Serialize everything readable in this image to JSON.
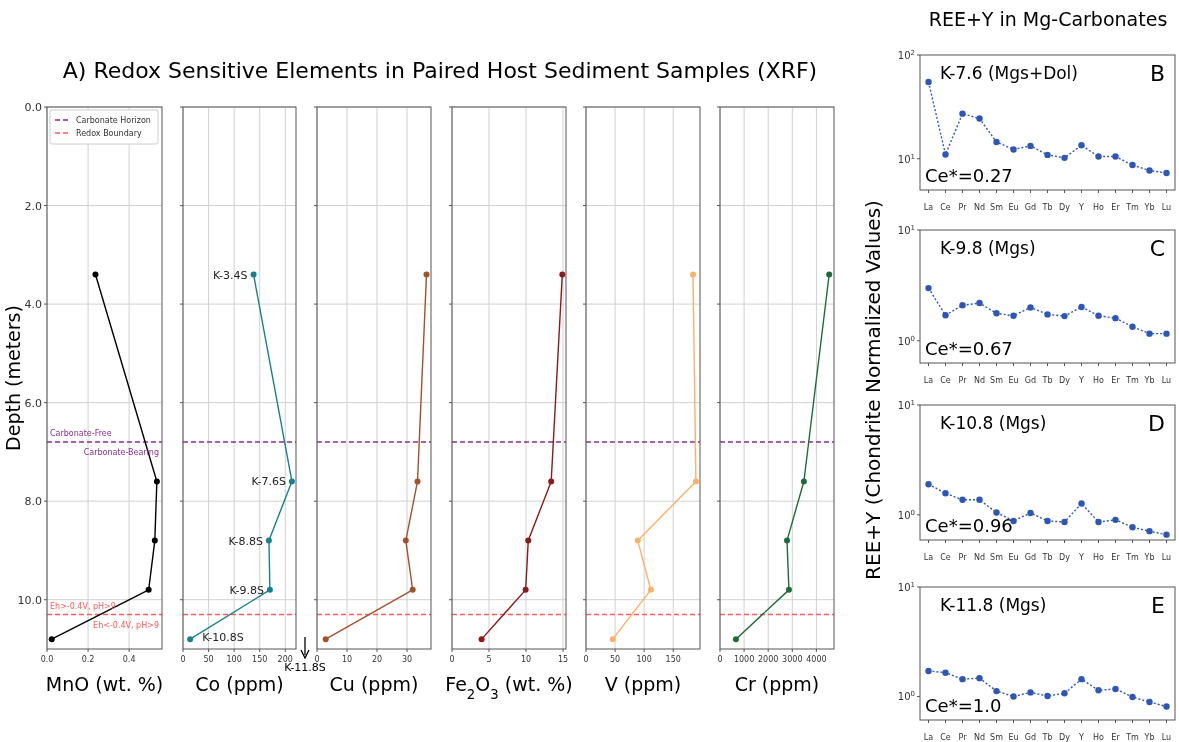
{
  "chart_data": [
    {
      "type": "line",
      "title": "A) Redox Sensitive Elements in Paired Host Sediment Samples (XRF)",
      "xlabel": "MnO (wt. %)",
      "ylabel": "Depth (meters)",
      "xlim": [
        0,
        0.56
      ],
      "xticks": [
        {
          "value": 0,
          "label": "0.0"
        },
        {
          "value": 0.2,
          "label": "0.2"
        },
        {
          "value": 0.4,
          "label": "0.4"
        }
      ],
      "ylim": [
        11,
        0
      ],
      "yticks": [
        {
          "value": 0,
          "label": "0.0"
        },
        {
          "value": 2,
          "label": "2.0"
        },
        {
          "value": 4,
          "label": "4.0"
        },
        {
          "value": 6,
          "label": "6.0"
        },
        {
          "value": 8,
          "label": "8.0"
        },
        {
          "value": 10,
          "label": "10.0"
        }
      ],
      "grid": true,
      "marker": "circle",
      "line_style": "solid",
      "legend": "top left",
      "series": [
        {
          "color": "#000000",
          "x": [
            0.236,
            0.535,
            0.525,
            0.495,
            0.023
          ],
          "values": [
            3.4,
            7.6,
            8.8,
            9.8,
            10.8
          ]
        }
      ],
      "ref_lines": [
        {
          "axis": "y",
          "value": 6.8,
          "label": "Carbonate Horizon",
          "color": "#8b2f8b",
          "line_style": "dashed"
        },
        {
          "axis": "y",
          "value": 10.3,
          "label": "Redox Boundary",
          "color": "#ff5a5a",
          "line_style": "dashed"
        }
      ],
      "annotations": [
        "Carbonate-Free",
        "Carbonate-Bearing",
        "Eh>-0.4V, pH>9",
        "Eh<-0.4V, pH>9"
      ]
    },
    {
      "type": "line",
      "xlabel": "Co (ppm)",
      "xlim": [
        0,
        221
      ],
      "xticks": [
        0,
        50,
        100,
        150,
        200
      ],
      "ylim": [
        11,
        0
      ],
      "yticks": [
        0,
        2,
        4,
        6,
        8,
        10
      ],
      "tick_labels": "x",
      "grid": true,
      "marker": "circle",
      "line_style": "solid",
      "series": [
        {
          "color": "#17808f",
          "x": [
            138,
            213,
            168,
            170,
            14
          ],
          "values": [
            3.4,
            7.6,
            8.8,
            9.8,
            10.8
          ]
        }
      ],
      "ref_lines": [
        {
          "axis": "y",
          "value": 6.8,
          "color": "#8b2f8b",
          "line_style": "dashed"
        },
        {
          "axis": "y",
          "value": 10.3,
          "color": "#ff5a5a",
          "line_style": "dashed"
        }
      ],
      "annotations": [
        {
          "text": "K-3.4S",
          "x": 138,
          "y": 3.4
        },
        {
          "text": "K-7.6S",
          "x": 213,
          "y": 7.6
        },
        {
          "text": "K-8.8S",
          "x": 168,
          "y": 8.8
        },
        {
          "text": "K-9.8S",
          "x": 170,
          "y": 9.8
        },
        {
          "text": "K-10.8S",
          "x": 14,
          "y": 10.8
        },
        "K-11.8S"
      ]
    },
    {
      "type": "line",
      "xlabel": "Cu (ppm)",
      "xlim": [
        0,
        38
      ],
      "xticks": [
        0,
        10,
        20,
        30
      ],
      "ylim": [
        11,
        0
      ],
      "yticks": [
        0,
        2,
        4,
        6,
        8,
        10
      ],
      "tick_labels": "x",
      "grid": true,
      "marker": "circle",
      "line_style": "solid",
      "series": [
        {
          "color": "#a0522d",
          "x": [
            36.5,
            33.5,
            29.6,
            31.9,
            2.9
          ],
          "values": [
            3.4,
            7.6,
            8.8,
            9.8,
            10.8
          ]
        }
      ],
      "ref_lines": [
        {
          "axis": "y",
          "value": 6.8,
          "color": "#8b2f8b",
          "line_style": "dashed"
        },
        {
          "axis": "y",
          "value": 10.3,
          "color": "#ff5a5a",
          "line_style": "dashed"
        }
      ]
    },
    {
      "type": "line",
      "xlabel": "Fe$_{2}$O$_{3}$ (wt. %)",
      "xlim": [
        0,
        15.4
      ],
      "xticks": [
        0,
        5,
        10,
        15
      ],
      "ylim": [
        11,
        0
      ],
      "yticks": [
        0,
        2,
        4,
        6,
        8,
        10
      ],
      "tick_labels": "x",
      "grid": true,
      "marker": "circle",
      "line_style": "solid",
      "series": [
        {
          "color": "#8b1a1a",
          "x": [
            14.9,
            13.4,
            10.3,
            9.95,
            4.0
          ],
          "values": [
            3.4,
            7.6,
            8.8,
            9.8,
            10.8
          ]
        }
      ],
      "ref_lines": [
        {
          "axis": "y",
          "value": 6.8,
          "color": "#8b2f8b",
          "line_style": "dashed"
        },
        {
          "axis": "y",
          "value": 10.3,
          "color": "#ff5a5a",
          "line_style": "dashed"
        }
      ]
    },
    {
      "type": "line",
      "xlabel": "V (ppm)",
      "xlim": [
        0,
        196
      ],
      "xticks": [
        0,
        50,
        100,
        150
      ],
      "ylim": [
        11,
        0
      ],
      "yticks": [
        0,
        2,
        4,
        6,
        8,
        10
      ],
      "tick_labels": "x",
      "grid": true,
      "marker": "circle",
      "line_style": "solid",
      "series": [
        {
          "color": "#ffb066",
          "x": [
            184,
            189,
            89,
            111.5,
            46
          ],
          "values": [
            3.4,
            7.6,
            8.8,
            9.8,
            10.8
          ]
        }
      ],
      "ref_lines": [
        {
          "axis": "y",
          "value": 6.8,
          "color": "#8b2f8b",
          "line_style": "dashed"
        },
        {
          "axis": "y",
          "value": 10.3,
          "color": "#ff5a5a",
          "line_style": "dashed"
        }
      ]
    },
    {
      "type": "line",
      "xlabel": "Cr (ppm)",
      "xlim": [
        0,
        4730
      ],
      "xticks": [
        0,
        1000,
        2000,
        3000,
        4000
      ],
      "ylim": [
        11,
        0
      ],
      "yticks": [
        0,
        2,
        4,
        6,
        8,
        10
      ],
      "tick_labels": "x",
      "grid": true,
      "marker": "circle",
      "line_style": "solid",
      "series": [
        {
          "color": "#1e6b3a",
          "x": [
            4530,
            3480,
            2780,
            2860,
            660
          ],
          "values": [
            3.4,
            7.6,
            8.8,
            9.8,
            10.8
          ]
        }
      ],
      "ref_lines": [
        {
          "axis": "y",
          "value": 6.8,
          "color": "#8b2f8b",
          "line_style": "dashed"
        },
        {
          "axis": "y",
          "value": 10.3,
          "color": "#ff5a5a",
          "line_style": "dashed"
        }
      ]
    },
    {
      "type": "line",
      "title": "REE+Y in Mg-Carbonates",
      "ylabel": "REE+Y (Chondrite Normalized Values)",
      "log": "y",
      "ylim": [
        5,
        100
      ],
      "yticks": [
        {
          "value": 10,
          "label": "10$^{1}$"
        },
        {
          "value": 100,
          "label": "10$^{2}$"
        }
      ],
      "marker": "circle",
      "line_style": "dotted",
      "categories": [
        "La",
        "Ce",
        "Pr",
        "Nd",
        "Sm",
        "Eu",
        "Gd",
        "Tb",
        "Dy",
        "Y",
        "Ho",
        "Er",
        "Tm",
        "Yb",
        "Lu"
      ],
      "series": [
        {
          "color": "#2e55b8",
          "values": [
            55,
            11.0,
            27.2,
            24.4,
            14.5,
            12.3,
            13.3,
            10.9,
            10.2,
            13.5,
            10.5,
            10.5,
            8.7,
            7.7,
            7.3
          ]
        }
      ],
      "annotations": [
        "K-7.6 (Mgs+Dol)",
        "B",
        "Ce*=0.27"
      ]
    },
    {
      "type": "line",
      "log": "y",
      "ylim": [
        0.63,
        10
      ],
      "yticks": [
        {
          "value": 1,
          "label": "10$^{0}$"
        },
        {
          "value": 10,
          "label": "10$^{1}$"
        }
      ],
      "marker": "circle",
      "line_style": "dotted",
      "categories": [
        "La",
        "Ce",
        "Pr",
        "Nd",
        "Sm",
        "Eu",
        "Gd",
        "Tb",
        "Dy",
        "Y",
        "Ho",
        "Er",
        "Tm",
        "Yb",
        "Lu"
      ],
      "series": [
        {
          "color": "#2e55b8",
          "values": [
            2.99,
            1.7,
            2.09,
            2.19,
            1.77,
            1.68,
            2.0,
            1.73,
            1.67,
            2.02,
            1.68,
            1.6,
            1.34,
            1.16,
            1.16
          ]
        }
      ],
      "annotations": [
        "K-9.8 (Mgs)",
        "C",
        "Ce*=0.67"
      ]
    },
    {
      "type": "line",
      "log": "y",
      "ylim": [
        0.59,
        10
      ],
      "yticks": [
        {
          "value": 1,
          "label": "10$^{0}$"
        },
        {
          "value": 10,
          "label": "10$^{1}$"
        }
      ],
      "marker": "circle",
      "line_style": "dotted",
      "categories": [
        "La",
        "Ce",
        "Pr",
        "Nd",
        "Sm",
        "Eu",
        "Gd",
        "Tb",
        "Dy",
        "Y",
        "Ho",
        "Er",
        "Tm",
        "Yb",
        "Lu"
      ],
      "series": [
        {
          "color": "#2e55b8",
          "values": [
            1.9,
            1.57,
            1.37,
            1.37,
            1.05,
            0.88,
            1.04,
            0.88,
            0.86,
            1.27,
            0.86,
            0.9,
            0.77,
            0.71,
            0.66
          ]
        }
      ],
      "annotations": [
        "K-10.8 (Mgs)",
        "D",
        "Ce*=0.96"
      ]
    },
    {
      "type": "line",
      "log": "y",
      "ylim": [
        0.61,
        10
      ],
      "yticks": [
        {
          "value": 1,
          "label": "10$^{0}$"
        },
        {
          "value": 10,
          "label": "10$^{1}$"
        }
      ],
      "marker": "circle",
      "line_style": "dotted",
      "categories": [
        "La",
        "Ce",
        "Pr",
        "Nd",
        "Sm",
        "Eu",
        "Gd",
        "Tb",
        "Dy",
        "Y",
        "Ho",
        "Er",
        "Tm",
        "Yb",
        "Lu"
      ],
      "series": [
        {
          "color": "#2e55b8",
          "values": [
            1.71,
            1.65,
            1.44,
            1.47,
            1.12,
            1.0,
            1.09,
            1.01,
            1.07,
            1.44,
            1.14,
            1.17,
            0.99,
            0.89,
            0.81
          ]
        }
      ],
      "annotations": [
        "K-11.8 (Mgs)",
        "E",
        "Ce*=1.0"
      ]
    }
  ]
}
